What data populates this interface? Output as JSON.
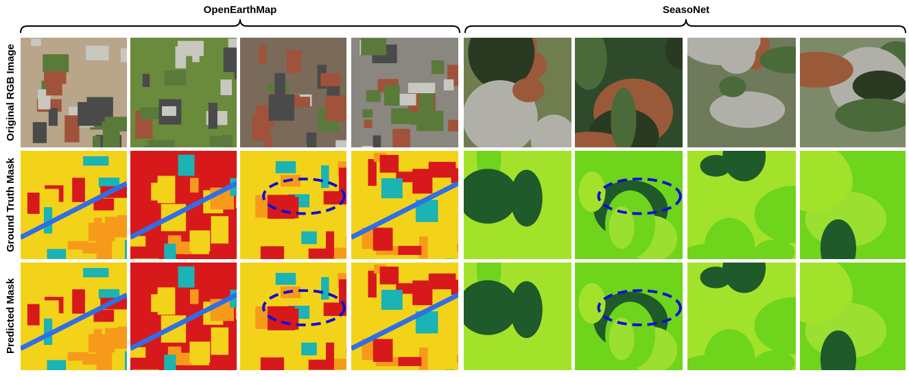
{
  "header": {
    "groups": [
      "OpenEarthMap",
      "SeasoNet"
    ]
  },
  "rows": [
    "Original RGB Image",
    "Ground Truth Mask",
    "Predicted Mask"
  ]
}
